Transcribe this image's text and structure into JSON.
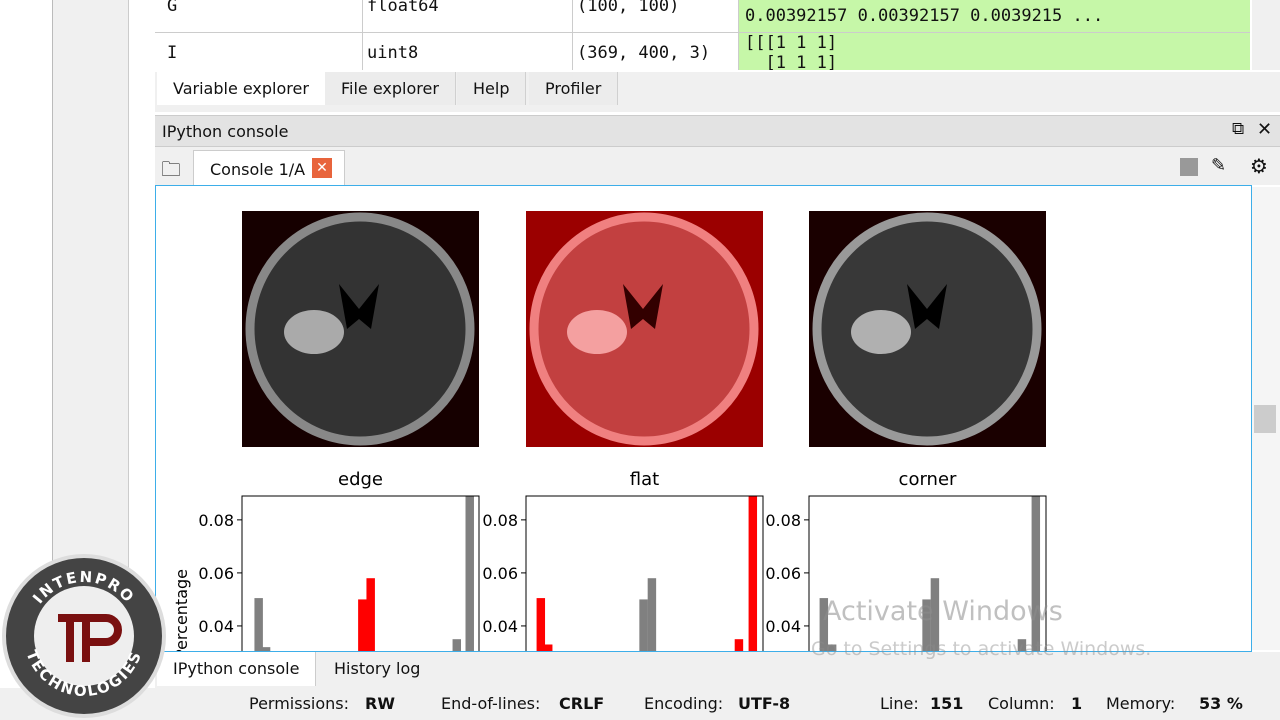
{
  "variables": {
    "rows": [
      {
        "name": "G",
        "type": "float64",
        "size": "(100, 100)",
        "value": [
          "0.00392157 0.00392157 0.0039215 ..."
        ]
      },
      {
        "name": "I",
        "type": "uint8",
        "size": "(369, 400, 3)",
        "value": [
          "[[[1 1 1]",
          "  [1 1 1]"
        ]
      }
    ]
  },
  "top_tabs": [
    "Variable explorer",
    "File explorer",
    "Help",
    "Profiler"
  ],
  "pane_title": "IPython console",
  "console_tab": "Console 1/A",
  "plots": [
    {
      "type": "bar",
      "title": "edge",
      "ylabel": "Percentage",
      "x": [
        18,
        26,
        130,
        139,
        232,
        246
      ],
      "values": [
        0.0505,
        0.032,
        0.05,
        0.058,
        0.035,
        0.095
      ],
      "colors": [
        "#808080",
        "#808080",
        "#ff0000",
        "#ff0000",
        "#808080",
        "#808080"
      ],
      "xlim": [
        0,
        256
      ],
      "ylim": [
        0,
        0.089
      ],
      "yticks": [
        0.04,
        0.06,
        0.08
      ]
    },
    {
      "type": "bar",
      "title": "flat",
      "x": [
        16,
        24,
        127,
        136,
        230,
        245
      ],
      "values": [
        0.0505,
        0.033,
        0.05,
        0.058,
        0.035,
        0.095
      ],
      "colors": [
        "#ff0000",
        "#ff0000",
        "#808080",
        "#808080",
        "#ff0000",
        "#ff0000"
      ],
      "xlim": [
        0,
        256
      ],
      "ylim": [
        0,
        0.089
      ],
      "yticks": [
        0.04,
        0.06,
        0.08
      ]
    },
    {
      "type": "bar",
      "title": "corner",
      "x": [
        16,
        25,
        127,
        136,
        230,
        245
      ],
      "values": [
        0.0505,
        0.033,
        0.05,
        0.058,
        0.035,
        0.095
      ],
      "colors": [
        "#808080",
        "#808080",
        "#808080",
        "#808080",
        "#808080",
        "#808080"
      ],
      "xlim": [
        0,
        256
      ],
      "ylim": [
        0,
        0.089
      ],
      "yticks": [
        0.04,
        0.06,
        0.08
      ]
    }
  ],
  "bottom_tabs": [
    "IPython console",
    "History log"
  ],
  "status": [
    {
      "label": "Permissions:",
      "value": "RW"
    },
    {
      "label": "End-of-lines:",
      "value": "CRLF"
    },
    {
      "label": "Encoding:",
      "value": "UTF-8"
    },
    {
      "label": "Line:",
      "value": "151"
    },
    {
      "label": "Column:",
      "value": "1"
    },
    {
      "label": "Memory:",
      "value": "53 %"
    }
  ],
  "watermark": {
    "title": "Activate Windows",
    "subtitle": "Go to Settings to activate Windows."
  },
  "logo": {
    "top": "INTENPRO",
    "bottom": "TECHNOLOGIES"
  }
}
